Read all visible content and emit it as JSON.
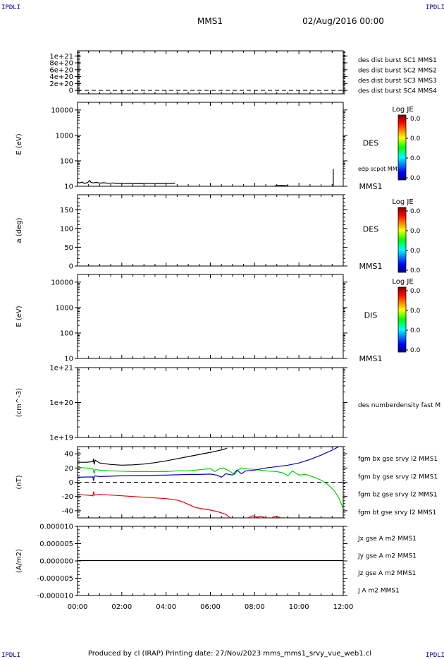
{
  "header": {
    "spacecraft": "MMS1",
    "date": "02/Aug/2016 00:00",
    "corner_label": "IPDLI"
  },
  "footer": {
    "text": "Produced by cl (IRAP)   Printing date: 27/Nov/2023   mms_mms1_srvy_vue_web1.cl"
  },
  "colors": {
    "black": "#000000",
    "red": "#e00000",
    "green": "#00d000",
    "blue": "#0000cc",
    "magenta": "#cc00cc",
    "axis": "#000000"
  },
  "chart_data": [
    {
      "id": "p1",
      "type": "line",
      "y_scale": "linear",
      "ylim": [
        -1e+20,
        1.15e+21
      ],
      "y_ticks": [
        "1e+21",
        "8e+20",
        "6e+20",
        "4e+20",
        "2e+20",
        "0"
      ],
      "y_tick_values": [
        1e+21,
        8e+20,
        6e+20,
        4e+20,
        2e+20,
        0
      ],
      "ylabel": "",
      "zero_line": true,
      "legend": [
        {
          "label": "des dist burst SC1 MMS1",
          "color": "#0000cc"
        },
        {
          "label": "des dist burst SC2 MMS2",
          "color": "#cc00cc"
        },
        {
          "label": "des dist burst SC3 MMS3",
          "color": "#e00000"
        },
        {
          "label": "des dist burst SC4 MMS4",
          "color": "#00d000"
        }
      ],
      "series": []
    },
    {
      "id": "p2",
      "type": "line",
      "y_scale": "log",
      "ylim": [
        10,
        20000
      ],
      "y_ticks": [
        "10000",
        "1000",
        "100",
        "10"
      ],
      "y_tick_values": [
        10000,
        1000,
        100,
        10
      ],
      "ylabel": "E (eV)",
      "side_label": "DES",
      "bottom_label": "MMS1",
      "legend": [
        {
          "label": "edp scpot MMS1",
          "color": "#000000"
        }
      ],
      "colorbar": {
        "title": "Log JE",
        "ticks": [
          "0.0",
          "0.0",
          "0.0",
          "0.0"
        ]
      },
      "series": [
        {
          "color": "#000000",
          "points": [
            [
              0,
              15
            ],
            [
              0.08,
              13.5
            ],
            [
              0.2,
              14.5
            ],
            [
              0.3,
              13.2
            ],
            [
              0.45,
              13.8
            ],
            [
              0.55,
              17
            ],
            [
              0.6,
              14.5
            ],
            [
              0.7,
              13.5
            ],
            [
              0.85,
              14.2
            ],
            [
              1.0,
              13.3
            ],
            [
              1.2,
              13.8
            ],
            [
              1.4,
              13.1
            ],
            [
              1.6,
              13.5
            ],
            [
              1.8,
              12.9
            ],
            [
              2.0,
              13.2
            ],
            [
              2.2,
              12.7
            ],
            [
              2.4,
              13.0
            ],
            [
              2.6,
              12.6
            ],
            [
              2.8,
              12.9
            ],
            [
              3.0,
              12.8
            ],
            [
              3.2,
              13.1
            ],
            [
              3.4,
              12.7
            ],
            [
              3.6,
              13.0
            ],
            [
              3.8,
              12.8
            ],
            [
              4.0,
              13.1
            ],
            [
              4.2,
              12.9
            ],
            [
              4.4,
              13.0
            ]
          ]
        },
        {
          "color": "#000000",
          "points": [
            [
              8.9,
              10.4
            ],
            [
              9.2,
              10.8
            ],
            [
              9.5,
              10.5
            ]
          ]
        },
        {
          "color": "#000000",
          "points": [
            [
              11.55,
              10
            ],
            [
              11.55,
              48
            ]
          ]
        }
      ]
    },
    {
      "id": "p3",
      "type": "line",
      "y_scale": "linear",
      "ylim": [
        0,
        190
      ],
      "y_ticks": [
        "150",
        "100",
        "50",
        "0"
      ],
      "y_tick_values": [
        150,
        100,
        50,
        0
      ],
      "ylabel": "a (deg)",
      "side_label": "DES",
      "bottom_label": "MMS1",
      "colorbar": {
        "title": "Log JE",
        "ticks": [
          "0.0",
          "0.0",
          "0.0",
          "0.0"
        ]
      },
      "series": []
    },
    {
      "id": "p4",
      "type": "line",
      "y_scale": "log",
      "ylim": [
        10,
        20000
      ],
      "y_ticks": [
        "10000",
        "1000",
        "100",
        "10"
      ],
      "y_tick_values": [
        10000,
        1000,
        100,
        10
      ],
      "ylabel": "E (eV)",
      "side_label": "DIS",
      "bottom_label": "MMS1",
      "colorbar": {
        "title": "Log JE",
        "ticks": [
          "0.0",
          "0.0",
          "0.0",
          "0.0"
        ]
      },
      "series": []
    },
    {
      "id": "p5",
      "type": "line",
      "y_scale": "log",
      "ylim": [
        1e+19,
        1e+21
      ],
      "y_ticks": [
        "1e+21",
        "1e+20",
        "1e+19"
      ],
      "y_tick_values": [
        1e+21,
        1e+20,
        1e+19
      ],
      "ylabel": "(cm^-3)",
      "legend": [
        {
          "label": "des numberdensity fast M",
          "color": "#000000"
        }
      ],
      "series": []
    },
    {
      "id": "p6",
      "type": "line",
      "y_scale": "linear",
      "ylim": [
        -50,
        50
      ],
      "y_ticks": [
        "40",
        "20",
        "0",
        "-20",
        "-40"
      ],
      "y_tick_values": [
        40,
        20,
        0,
        -20,
        -40
      ],
      "ylabel": "(nT)",
      "zero_line": true,
      "legend": [
        {
          "label": "fgm bx gse srvy l2 MMS1",
          "color": "#e00000"
        },
        {
          "label": "fgm by gse srvy l2 MMS1",
          "color": "#00d000"
        },
        {
          "label": "fgm bz gse srvy l2 MMS1",
          "color": "#0000cc"
        },
        {
          "label": "fgm bt gse srvy l2 MMS1",
          "color": "#000000"
        }
      ],
      "series": [
        {
          "name": "fgm bt gse srvy l2 MMS1",
          "color": "#000000",
          "points": [
            [
              0,
              28
            ],
            [
              0.4,
              28
            ],
            [
              0.7,
              29
            ],
            [
              0.72,
              33
            ],
            [
              0.75,
              25
            ],
            [
              0.8,
              31
            ],
            [
              1.0,
              27
            ],
            [
              1.5,
              25
            ],
            [
              2.0,
              24
            ],
            [
              2.5,
              24.5
            ],
            [
              3.0,
              25.5
            ],
            [
              3.5,
              27.5
            ],
            [
              4.0,
              30
            ],
            [
              4.5,
              33
            ],
            [
              5.0,
              36
            ],
            [
              5.5,
              39
            ],
            [
              6.0,
              42
            ],
            [
              6.3,
              44
            ],
            [
              6.6,
              46
            ],
            [
              6.75,
              48
            ]
          ]
        },
        {
          "name": "fgm by gse srvy l2 MMS1",
          "color": "#00d000",
          "points": [
            [
              0,
              21
            ],
            [
              0.4,
              20
            ],
            [
              0.7,
              19
            ],
            [
              0.75,
              12
            ],
            [
              0.8,
              18
            ],
            [
              1.0,
              17
            ],
            [
              1.5,
              16
            ],
            [
              2.0,
              15.5
            ],
            [
              2.5,
              15
            ],
            [
              3.0,
              15
            ],
            [
              3.5,
              15
            ],
            [
              4.0,
              15
            ],
            [
              4.5,
              16
            ],
            [
              5.0,
              16
            ],
            [
              5.5,
              17.5
            ],
            [
              6.0,
              19
            ],
            [
              6.2,
              15
            ],
            [
              6.4,
              19
            ],
            [
              6.6,
              20
            ],
            [
              6.9,
              15
            ],
            [
              7.1,
              11
            ],
            [
              7.2,
              16
            ],
            [
              7.4,
              20
            ],
            [
              7.6,
              19
            ],
            [
              8.0,
              18
            ],
            [
              8.5,
              16
            ],
            [
              9.0,
              15
            ],
            [
              9.3,
              13
            ],
            [
              9.5,
              9
            ],
            [
              9.7,
              16
            ],
            [
              10.0,
              10
            ],
            [
              10.3,
              11
            ],
            [
              10.5,
              9
            ],
            [
              10.7,
              7
            ],
            [
              11.0,
              3
            ],
            [
              11.3,
              -3
            ],
            [
              11.6,
              -12
            ],
            [
              11.8,
              -22
            ],
            [
              12.0,
              -37
            ]
          ]
        },
        {
          "name": "fgm bz gse srvy l2 MMS1",
          "color": "#0000cc",
          "points": [
            [
              0,
              7
            ],
            [
              0.7,
              7.5
            ],
            [
              0.72,
              2
            ],
            [
              0.76,
              9
            ],
            [
              1.0,
              8
            ],
            [
              2.0,
              9
            ],
            [
              3.0,
              9.5
            ],
            [
              4.0,
              10
            ],
            [
              5.0,
              11
            ],
            [
              5.5,
              11
            ],
            [
              6.0,
              11.5
            ],
            [
              6.3,
              10
            ],
            [
              6.5,
              7
            ],
            [
              6.7,
              12
            ],
            [
              7.0,
              10
            ],
            [
              7.2,
              17
            ],
            [
              7.4,
              12
            ],
            [
              7.6,
              16
            ],
            [
              8.0,
              17
            ],
            [
              8.5,
              20
            ],
            [
              9.0,
              22
            ],
            [
              9.5,
              24
            ],
            [
              10.0,
              27
            ],
            [
              10.5,
              32
            ],
            [
              11.0,
              38
            ],
            [
              11.5,
              45
            ],
            [
              11.8,
              50
            ]
          ]
        },
        {
          "name": "fgm bx gse srvy l2 MMS1",
          "color": "#e00000",
          "points": [
            [
              0,
              -17
            ],
            [
              0.4,
              -18
            ],
            [
              0.7,
              -19
            ],
            [
              0.72,
              -13
            ],
            [
              0.76,
              -18
            ],
            [
              1.0,
              -17
            ],
            [
              1.5,
              -18
            ],
            [
              2.0,
              -19
            ],
            [
              2.5,
              -20
            ],
            [
              3.0,
              -21
            ],
            [
              3.5,
              -22
            ],
            [
              4.0,
              -23
            ],
            [
              4.5,
              -25
            ],
            [
              4.8,
              -28
            ],
            [
              5.0,
              -31
            ],
            [
              5.3,
              -35
            ],
            [
              5.6,
              -37
            ],
            [
              6.0,
              -39
            ],
            [
              6.3,
              -41
            ],
            [
              6.5,
              -43
            ],
            [
              6.7,
              -45
            ],
            [
              6.9,
              -50
            ]
          ]
        },
        {
          "name": "fgm bx gse srvy l2 MMS1",
          "color": "#e00000",
          "points": [
            [
              7.7,
              -50
            ],
            [
              7.9,
              -47
            ],
            [
              8.1,
              -49
            ],
            [
              8.3,
              -48
            ],
            [
              8.5,
              -50
            ]
          ]
        },
        {
          "name": "fgm bx gse srvy l2 MMS1",
          "color": "#e00000",
          "points": [
            [
              8.8,
              -49
            ],
            [
              9.0,
              -48
            ],
            [
              9.2,
              -50
            ]
          ]
        }
      ]
    },
    {
      "id": "p7",
      "type": "line",
      "y_scale": "linear",
      "ylim": [
        -1e-05,
        1e-05
      ],
      "y_ticks": [
        "0.000010",
        "0.000005",
        "0.000000",
        "-0.000005",
        "-0.000010"
      ],
      "y_tick_values": [
        1e-05,
        5e-06,
        0,
        -5e-06,
        -1e-05
      ],
      "ylabel": "(A/m2)",
      "legend": [
        {
          "label": "Jx gse A m2 MMS1",
          "color": "#e00000"
        },
        {
          "label": "Jy gse A m2 MMS1",
          "color": "#00d000"
        },
        {
          "label": "Jz gse A m2 MMS1",
          "color": "#0000cc"
        },
        {
          "label": "J A m2 MMS1",
          "color": "#000000"
        }
      ],
      "series": [
        {
          "name": "J A m2 MMS1",
          "color": "#000000",
          "points": [
            [
              0,
              1e-07
            ],
            [
              1,
              1e-07
            ],
            [
              2,
              1e-07
            ],
            [
              3,
              1e-07
            ],
            [
              4,
              1e-07
            ],
            [
              5,
              1e-07
            ],
            [
              6,
              1e-07
            ],
            [
              7,
              1e-07
            ],
            [
              8,
              1e-07
            ],
            [
              9,
              1e-07
            ],
            [
              10,
              1e-07
            ],
            [
              11,
              1e-07
            ],
            [
              12,
              1e-07
            ]
          ]
        }
      ]
    }
  ],
  "x_axis": {
    "range_hours": [
      0,
      12
    ],
    "tick_labels": [
      "00:00",
      "02:00",
      "04:00",
      "06:00",
      "08:00",
      "10:00",
      "12:00"
    ],
    "tick_values": [
      0,
      2,
      4,
      6,
      8,
      10,
      12
    ]
  }
}
